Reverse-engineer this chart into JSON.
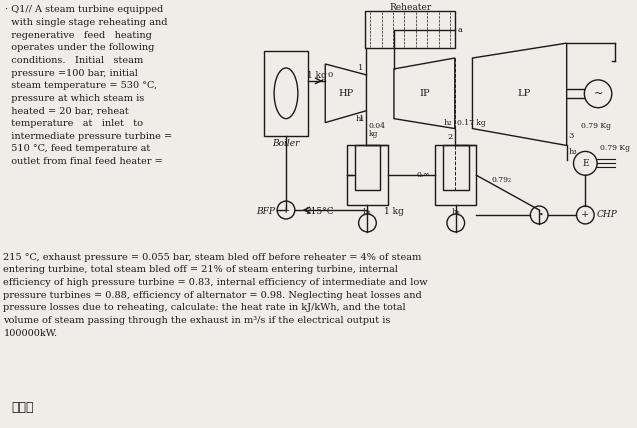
{
  "bg_color": "#f0ede8",
  "text_color": "#1a1a1a",
  "line_color": "#1a1a1a",
  "title_line1": "· Q1// A steam turbine equipped",
  "title_lines": [
    "· Q1// A steam turbine equipped",
    "  with single stage reheating and",
    "  regenerative   feed   heating",
    "  operates under the following",
    "  conditions.   Initial   steam",
    "  pressure =100 bar, initial",
    "  steam temperature = 530 °C,",
    "  pressure at which steam is",
    "  heated = 20 bar, reheat",
    "  temperature   at   inlet   to",
    "  intermediate pressure turbine =",
    "  510 °C, feed temperature at",
    "  outlet from final feed heater ="
  ],
  "body_text": "215 °C, exhaust pressure = 0.055 bar, steam bled off before reheater = 4% of steam\nentering turbine, total steam bled off = 21% of steam entering turbine, internal\nefficiency of high pressure turbine = 0.83, internal efficiency of intermediate and low\npressure turbines = 0.88, efficiency of alternator = 0.98. Neglecting heat losses and\npressure losses due to reheating, calculate: the heat rate in kJ/kWh, and the total\nvolume of steam passing through the exhaust in m³/s if the electrical output is\n100000kW.",
  "signature": "فسه"
}
